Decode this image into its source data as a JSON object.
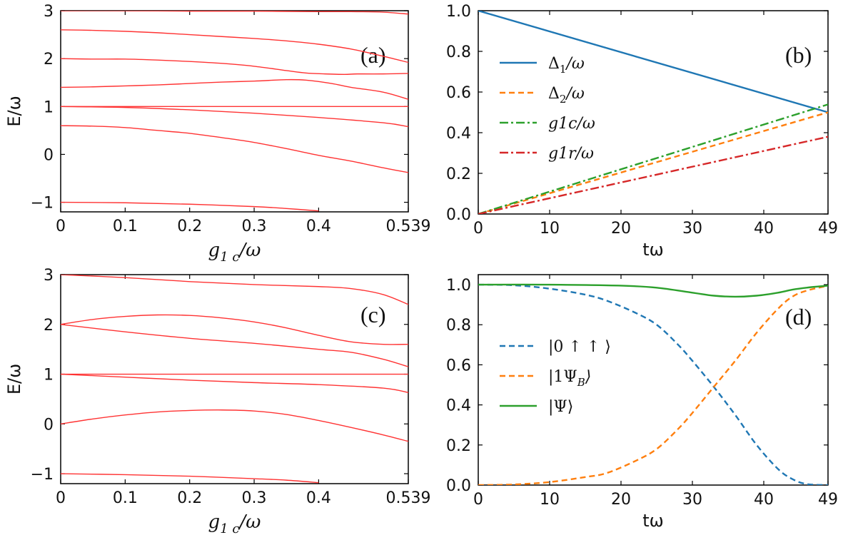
{
  "chart_data": [
    {
      "panel": "(a)",
      "type": "line",
      "xlabel": "g_{1c}/ω",
      "ylabel": "E/ω",
      "xlim": [
        0,
        0.539
      ],
      "ylim": [
        -1.2,
        3
      ],
      "xticks": [
        "0",
        "0.1",
        "0.2",
        "0.3",
        "0.4",
        "0.539"
      ],
      "xtick_values": [
        0,
        0.1,
        0.2,
        0.3,
        0.4,
        0.539
      ],
      "yticks": [
        "−1",
        "0",
        "1",
        "2",
        "3"
      ],
      "ytick_values": [
        -1,
        0,
        1,
        2,
        3
      ],
      "color": "#ff3333",
      "series": [
        {
          "name": "level-1",
          "x": [
            0,
            0.1,
            0.2,
            0.3,
            0.4,
            0.45,
            0.5,
            0.539
          ],
          "y": [
            3.0,
            3.0,
            2.99,
            2.99,
            2.98,
            2.98,
            2.97,
            2.93
          ]
        },
        {
          "name": "level-2",
          "x": [
            0,
            0.05,
            0.1,
            0.15,
            0.2,
            0.25,
            0.3,
            0.35,
            0.4,
            0.45,
            0.5,
            0.539
          ],
          "y": [
            2.6,
            2.59,
            2.57,
            2.54,
            2.5,
            2.46,
            2.42,
            2.37,
            2.3,
            2.2,
            2.05,
            1.92
          ]
        },
        {
          "name": "level-3",
          "x": [
            0,
            0.05,
            0.1,
            0.15,
            0.2,
            0.25,
            0.3,
            0.35,
            0.38,
            0.41,
            0.44,
            0.46,
            0.5,
            0.539
          ],
          "y": [
            2.0,
            1.99,
            1.99,
            1.97,
            1.94,
            1.9,
            1.84,
            1.75,
            1.7,
            1.68,
            1.67,
            1.68,
            1.68,
            1.69
          ]
        },
        {
          "name": "level-4",
          "x": [
            0,
            0.05,
            0.1,
            0.15,
            0.2,
            0.25,
            0.3,
            0.35,
            0.38,
            0.42,
            0.45,
            0.5,
            0.539
          ],
          "y": [
            1.4,
            1.41,
            1.43,
            1.45,
            1.48,
            1.51,
            1.53,
            1.56,
            1.55,
            1.48,
            1.4,
            1.3,
            1.15
          ]
        },
        {
          "name": "level-5",
          "x": [
            0,
            0.1,
            0.2,
            0.3,
            0.4,
            0.5,
            0.539
          ],
          "y": [
            1.0,
            1.0,
            1.0,
            1.0,
            1.0,
            1.0,
            1.0
          ]
        },
        {
          "name": "level-6",
          "x": [
            0,
            0.1,
            0.2,
            0.3,
            0.4,
            0.5,
            0.539
          ],
          "y": [
            1.0,
            0.98,
            0.93,
            0.86,
            0.77,
            0.66,
            0.58
          ]
        },
        {
          "name": "level-7",
          "x": [
            0,
            0.05,
            0.1,
            0.15,
            0.2,
            0.25,
            0.3,
            0.35,
            0.4,
            0.45,
            0.5,
            0.539
          ],
          "y": [
            0.6,
            0.59,
            0.56,
            0.5,
            0.44,
            0.35,
            0.25,
            0.12,
            -0.02,
            -0.14,
            -0.28,
            -0.38
          ]
        },
        {
          "name": "level-8",
          "x": [
            0,
            0.1,
            0.2,
            0.3,
            0.35,
            0.4
          ],
          "y": [
            -1.0,
            -1.01,
            -1.04,
            -1.09,
            -1.13,
            -1.18
          ]
        }
      ]
    },
    {
      "panel": "(b)",
      "type": "line",
      "xlabel": "tω",
      "ylabel": "",
      "xlim": [
        0,
        49
      ],
      "ylim": [
        0,
        1
      ],
      "xticks": [
        "0",
        "10",
        "20",
        "30",
        "40",
        "49"
      ],
      "xtick_values": [
        0,
        10,
        20,
        30,
        40,
        49
      ],
      "yticks": [
        "0.0",
        "0.2",
        "0.4",
        "0.6",
        "0.8",
        "1.0"
      ],
      "ytick_values": [
        0,
        0.2,
        0.4,
        0.6,
        0.8,
        1.0
      ],
      "series": [
        {
          "name": "Δ1/ω",
          "label_main": "Δ",
          "label_sub": "1",
          "label_tail": "/ω",
          "color": "#1f77b4",
          "dash": "",
          "x": [
            0,
            49
          ],
          "y": [
            1.0,
            0.5
          ]
        },
        {
          "name": "Δ2/ω",
          "label_main": "Δ",
          "label_sub": "2",
          "label_tail": "/ω",
          "color": "#ff7f0e",
          "dash": "8 5",
          "x": [
            0,
            49
          ],
          "y": [
            0.0,
            0.5
          ]
        },
        {
          "name": "g1c/ω",
          "label_main": "g1c",
          "label_sub": "",
          "label_tail": "/ω",
          "color": "#2ca02c",
          "dash": "12 4 3 4",
          "x": [
            0,
            49
          ],
          "y": [
            0.0,
            0.539
          ]
        },
        {
          "name": "g1r/ω",
          "label_main": "g1r",
          "label_sub": "",
          "label_tail": "/ω",
          "color": "#d62728",
          "dash": "12 4 3 4",
          "x": [
            0,
            49
          ],
          "y": [
            0.0,
            0.38
          ]
        }
      ]
    },
    {
      "panel": "(c)",
      "type": "line",
      "xlabel": "g_{1c}/ω",
      "ylabel": "E/ω",
      "xlim": [
        0,
        0.539
      ],
      "ylim": [
        -1.2,
        3
      ],
      "xticks": [
        "0",
        "0.1",
        "0.2",
        "0.3",
        "0.4",
        "0.539"
      ],
      "xtick_values": [
        0,
        0.1,
        0.2,
        0.3,
        0.4,
        0.539
      ],
      "yticks": [
        "−1",
        "0",
        "1",
        "2",
        "3"
      ],
      "ytick_values": [
        -1,
        0,
        1,
        2,
        3
      ],
      "color": "#ff3333",
      "series": [
        {
          "name": "level-1",
          "x": [
            0,
            0.1,
            0.2,
            0.3,
            0.4,
            0.45,
            0.5,
            0.539
          ],
          "y": [
            3.0,
            2.94,
            2.86,
            2.8,
            2.76,
            2.72,
            2.6,
            2.4
          ]
        },
        {
          "name": "level-2",
          "x": [
            0,
            0.05,
            0.1,
            0.15,
            0.2,
            0.25,
            0.3,
            0.35,
            0.4,
            0.45,
            0.5,
            0.539
          ],
          "y": [
            2.0,
            2.1,
            2.16,
            2.19,
            2.18,
            2.13,
            2.05,
            1.93,
            1.78,
            1.65,
            1.6,
            1.6
          ]
        },
        {
          "name": "level-3",
          "x": [
            0,
            0.1,
            0.2,
            0.3,
            0.4,
            0.45,
            0.5,
            0.539
          ],
          "y": [
            2.0,
            1.85,
            1.72,
            1.62,
            1.5,
            1.44,
            1.3,
            1.15
          ]
        },
        {
          "name": "level-4",
          "x": [
            0,
            0.1,
            0.2,
            0.3,
            0.4,
            0.5,
            0.539
          ],
          "y": [
            1.0,
            1.0,
            1.0,
            1.0,
            1.0,
            1.0,
            1.0
          ]
        },
        {
          "name": "level-5",
          "x": [
            0,
            0.1,
            0.2,
            0.3,
            0.4,
            0.5,
            0.539
          ],
          "y": [
            1.0,
            0.94,
            0.88,
            0.83,
            0.79,
            0.72,
            0.63
          ]
        },
        {
          "name": "level-6",
          "x": [
            0,
            0.05,
            0.1,
            0.15,
            0.2,
            0.25,
            0.3,
            0.35,
            0.4,
            0.45,
            0.5,
            0.539
          ],
          "y": [
            0.0,
            0.1,
            0.18,
            0.24,
            0.27,
            0.28,
            0.26,
            0.19,
            0.07,
            -0.07,
            -0.22,
            -0.35
          ]
        },
        {
          "name": "level-7",
          "x": [
            0,
            0.1,
            0.2,
            0.3,
            0.35,
            0.4
          ],
          "y": [
            -1.0,
            -1.02,
            -1.05,
            -1.1,
            -1.13,
            -1.18
          ]
        }
      ]
    },
    {
      "panel": "(d)",
      "type": "line",
      "xlabel": "tω",
      "ylabel": "",
      "xlim": [
        0,
        49
      ],
      "ylim": [
        0,
        1.05
      ],
      "xticks": [
        "0",
        "10",
        "20",
        "30",
        "40",
        "49"
      ],
      "xtick_values": [
        0,
        10,
        20,
        30,
        40,
        49
      ],
      "yticks": [
        "0.0",
        "0.2",
        "0.4",
        "0.6",
        "0.8",
        "1.0"
      ],
      "ytick_values": [
        0,
        0.2,
        0.4,
        0.6,
        0.8,
        1.0
      ],
      "series": [
        {
          "name": "|0 ↑ ↑ ⟩",
          "label_main": "|0 ↑ ↑ ⟩",
          "label_sub": "",
          "label_tail": "",
          "color": "#1f77b4",
          "dash": "8 5",
          "x": [
            0,
            5,
            10,
            15,
            18,
            22,
            25,
            28,
            30,
            33,
            36,
            39,
            42,
            44,
            46,
            49
          ],
          "y": [
            1.0,
            0.997,
            0.98,
            0.95,
            0.92,
            0.86,
            0.8,
            0.7,
            0.62,
            0.49,
            0.35,
            0.2,
            0.08,
            0.03,
            0.005,
            0.0
          ]
        },
        {
          "name": "|1Ψ_B⟩",
          "label_main": "|1Ψ",
          "label_sub": "B",
          "label_tail": "⟩",
          "color": "#ff7f0e",
          "dash": "8 5",
          "x": [
            0,
            5,
            10,
            15,
            18,
            22,
            25,
            28,
            30,
            33,
            36,
            39,
            42,
            44,
            46,
            49
          ],
          "y": [
            0.0,
            0.003,
            0.015,
            0.04,
            0.06,
            0.12,
            0.18,
            0.28,
            0.36,
            0.49,
            0.62,
            0.76,
            0.88,
            0.94,
            0.97,
            0.995
          ]
        },
        {
          "name": "|Ψ⟩",
          "label_main": "|Ψ⟩",
          "label_sub": "",
          "label_tail": "",
          "color": "#2ca02c",
          "dash": "",
          "x": [
            0,
            10,
            20,
            25,
            30,
            33,
            36,
            39,
            42,
            44,
            46,
            49
          ],
          "y": [
            1.0,
            1.0,
            0.995,
            0.985,
            0.96,
            0.945,
            0.94,
            0.945,
            0.96,
            0.975,
            0.985,
            0.995
          ]
        }
      ]
    }
  ]
}
